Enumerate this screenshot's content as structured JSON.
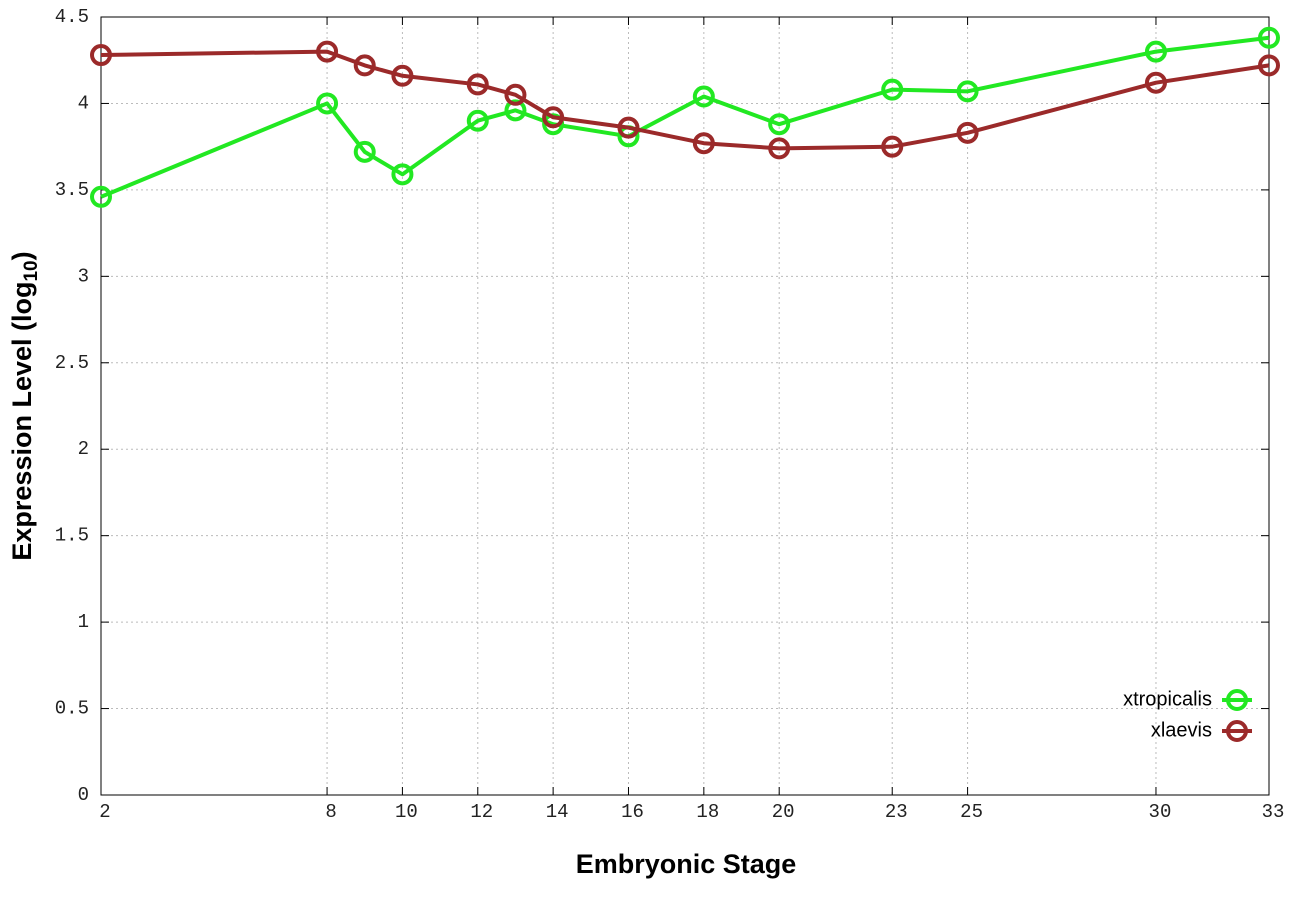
{
  "chart_data": {
    "type": "line",
    "xlabel": "Embryonic Stage",
    "ylabel": {
      "text": "Expression Level (log",
      "sub": "10",
      "end": ")"
    },
    "x": [
      2,
      8,
      9,
      10,
      12,
      13,
      14,
      16,
      18,
      20,
      23,
      25,
      30,
      33
    ],
    "series": [
      {
        "name": "xtropicalis",
        "color": "#22e822",
        "values": [
          3.46,
          4.0,
          3.72,
          3.59,
          3.9,
          3.96,
          3.88,
          3.81,
          4.04,
          3.88,
          4.08,
          4.07,
          4.3,
          4.38
        ]
      },
      {
        "name": "xlaevis",
        "color": "#9b2a2a",
        "values": [
          4.28,
          4.3,
          4.22,
          4.16,
          4.11,
          4.05,
          3.92,
          3.86,
          3.77,
          3.74,
          3.75,
          3.83,
          4.12,
          4.22
        ]
      }
    ],
    "xlim": [
      2,
      33
    ],
    "xticks": [
      2,
      8,
      10,
      12,
      14,
      16,
      18,
      20,
      23,
      25,
      30,
      33
    ],
    "ylim": [
      0,
      4.5
    ],
    "yticks": [
      0,
      0.5,
      1,
      1.5,
      2,
      2.5,
      3,
      3.5,
      4,
      4.5
    ],
    "grid": true,
    "legend": "lower right"
  }
}
